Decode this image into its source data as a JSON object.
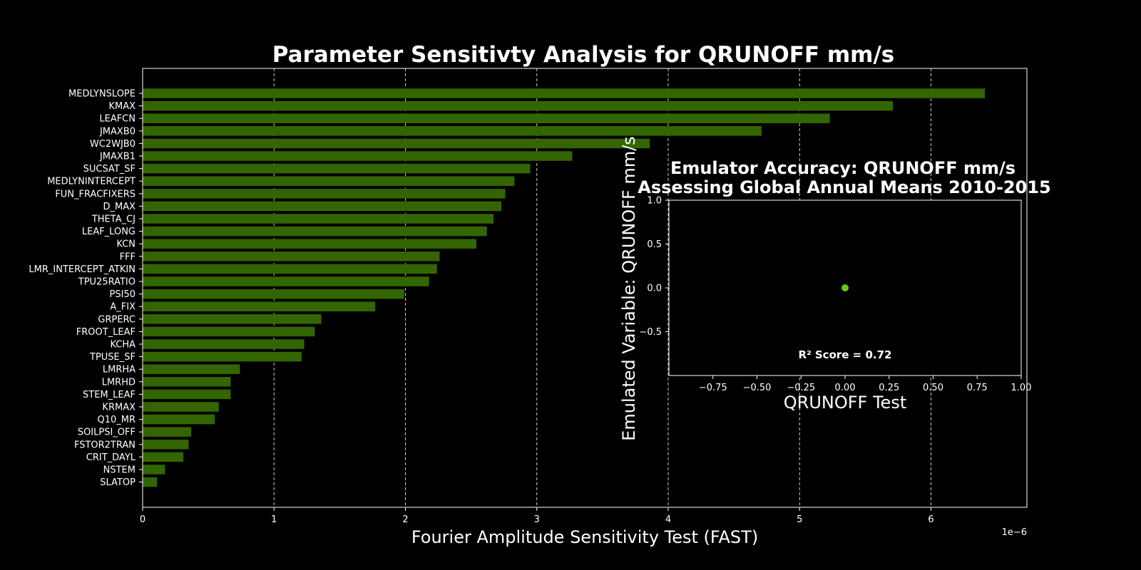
{
  "colors": {
    "bar": "#336600",
    "point": "#5ecc14",
    "background": "#000000",
    "foreground": "#ffffff"
  },
  "chart_data": [
    {
      "type": "bar",
      "orientation": "horizontal",
      "title": "Parameter Sensitivty Analysis for QRUNOFF mm/s",
      "xlabel": "Fourier Amplitude Sensitivity Test (FAST)",
      "ylabel": "",
      "x_multiplier_label": "1e−6",
      "x_scale": 1e-06,
      "xlim": [
        0,
        6.73
      ],
      "xticks": [
        "0",
        "1",
        "2",
        "3",
        "4",
        "5",
        "6"
      ],
      "grid": "x-dashed",
      "categories": [
        "MEDLYNSLOPE",
        "KMAX",
        "LEAFCN",
        "JMAXB0",
        "WC2WJB0",
        "JMAXB1",
        "SUCSAT_SF",
        "MEDLYNINTERCEPT",
        "FUN_FRACFIXERS",
        "D_MAX",
        "THETA_CJ",
        "LEAF_LONG",
        "KCN",
        "FFF",
        "LMR_INTERCEPT_ATKIN",
        "TPU25RATIO",
        "PSI50",
        "A_FIX",
        "GRPERC",
        "FROOT_LEAF",
        "KCHA",
        "TPUSE_SF",
        "LMRHA",
        "LMRHD",
        "STEM_LEAF",
        "KRMAX",
        "Q10_MR",
        "SOILPSI_OFF",
        "FSTOR2TRAN",
        "CRIT_DAYL",
        "NSTEM",
        "SLATOP"
      ],
      "values": [
        6.41,
        5.71,
        5.23,
        4.71,
        3.86,
        3.27,
        2.95,
        2.83,
        2.76,
        2.73,
        2.67,
        2.62,
        2.54,
        2.26,
        2.24,
        2.18,
        1.99,
        1.77,
        1.36,
        1.31,
        1.23,
        1.21,
        0.74,
        0.67,
        0.67,
        0.58,
        0.55,
        0.37,
        0.35,
        0.31,
        0.17,
        0.11
      ]
    },
    {
      "type": "scatter",
      "title": "Emulator Accuracy: QRUNOFF mm/s",
      "subtitle": "Assessing Global Annual Means 2010-2015",
      "xlabel": "QRUNOFF Test",
      "ylabel": "Emulated Variable: QRUNOFF mm/s",
      "xlim": [
        -1.0,
        1.0
      ],
      "ylim": [
        -1.0,
        1.0
      ],
      "xticks": [
        "−0.75",
        "−0.50",
        "−0.25",
        "0.00",
        "0.25",
        "0.50",
        "0.75",
        "1.00"
      ],
      "yticks": [
        "−0.5",
        "0.0",
        "0.5",
        "1.0"
      ],
      "points": [
        {
          "x": 0.0,
          "y": 0.0
        }
      ],
      "annotation": "R² Score = 0.72"
    }
  ]
}
